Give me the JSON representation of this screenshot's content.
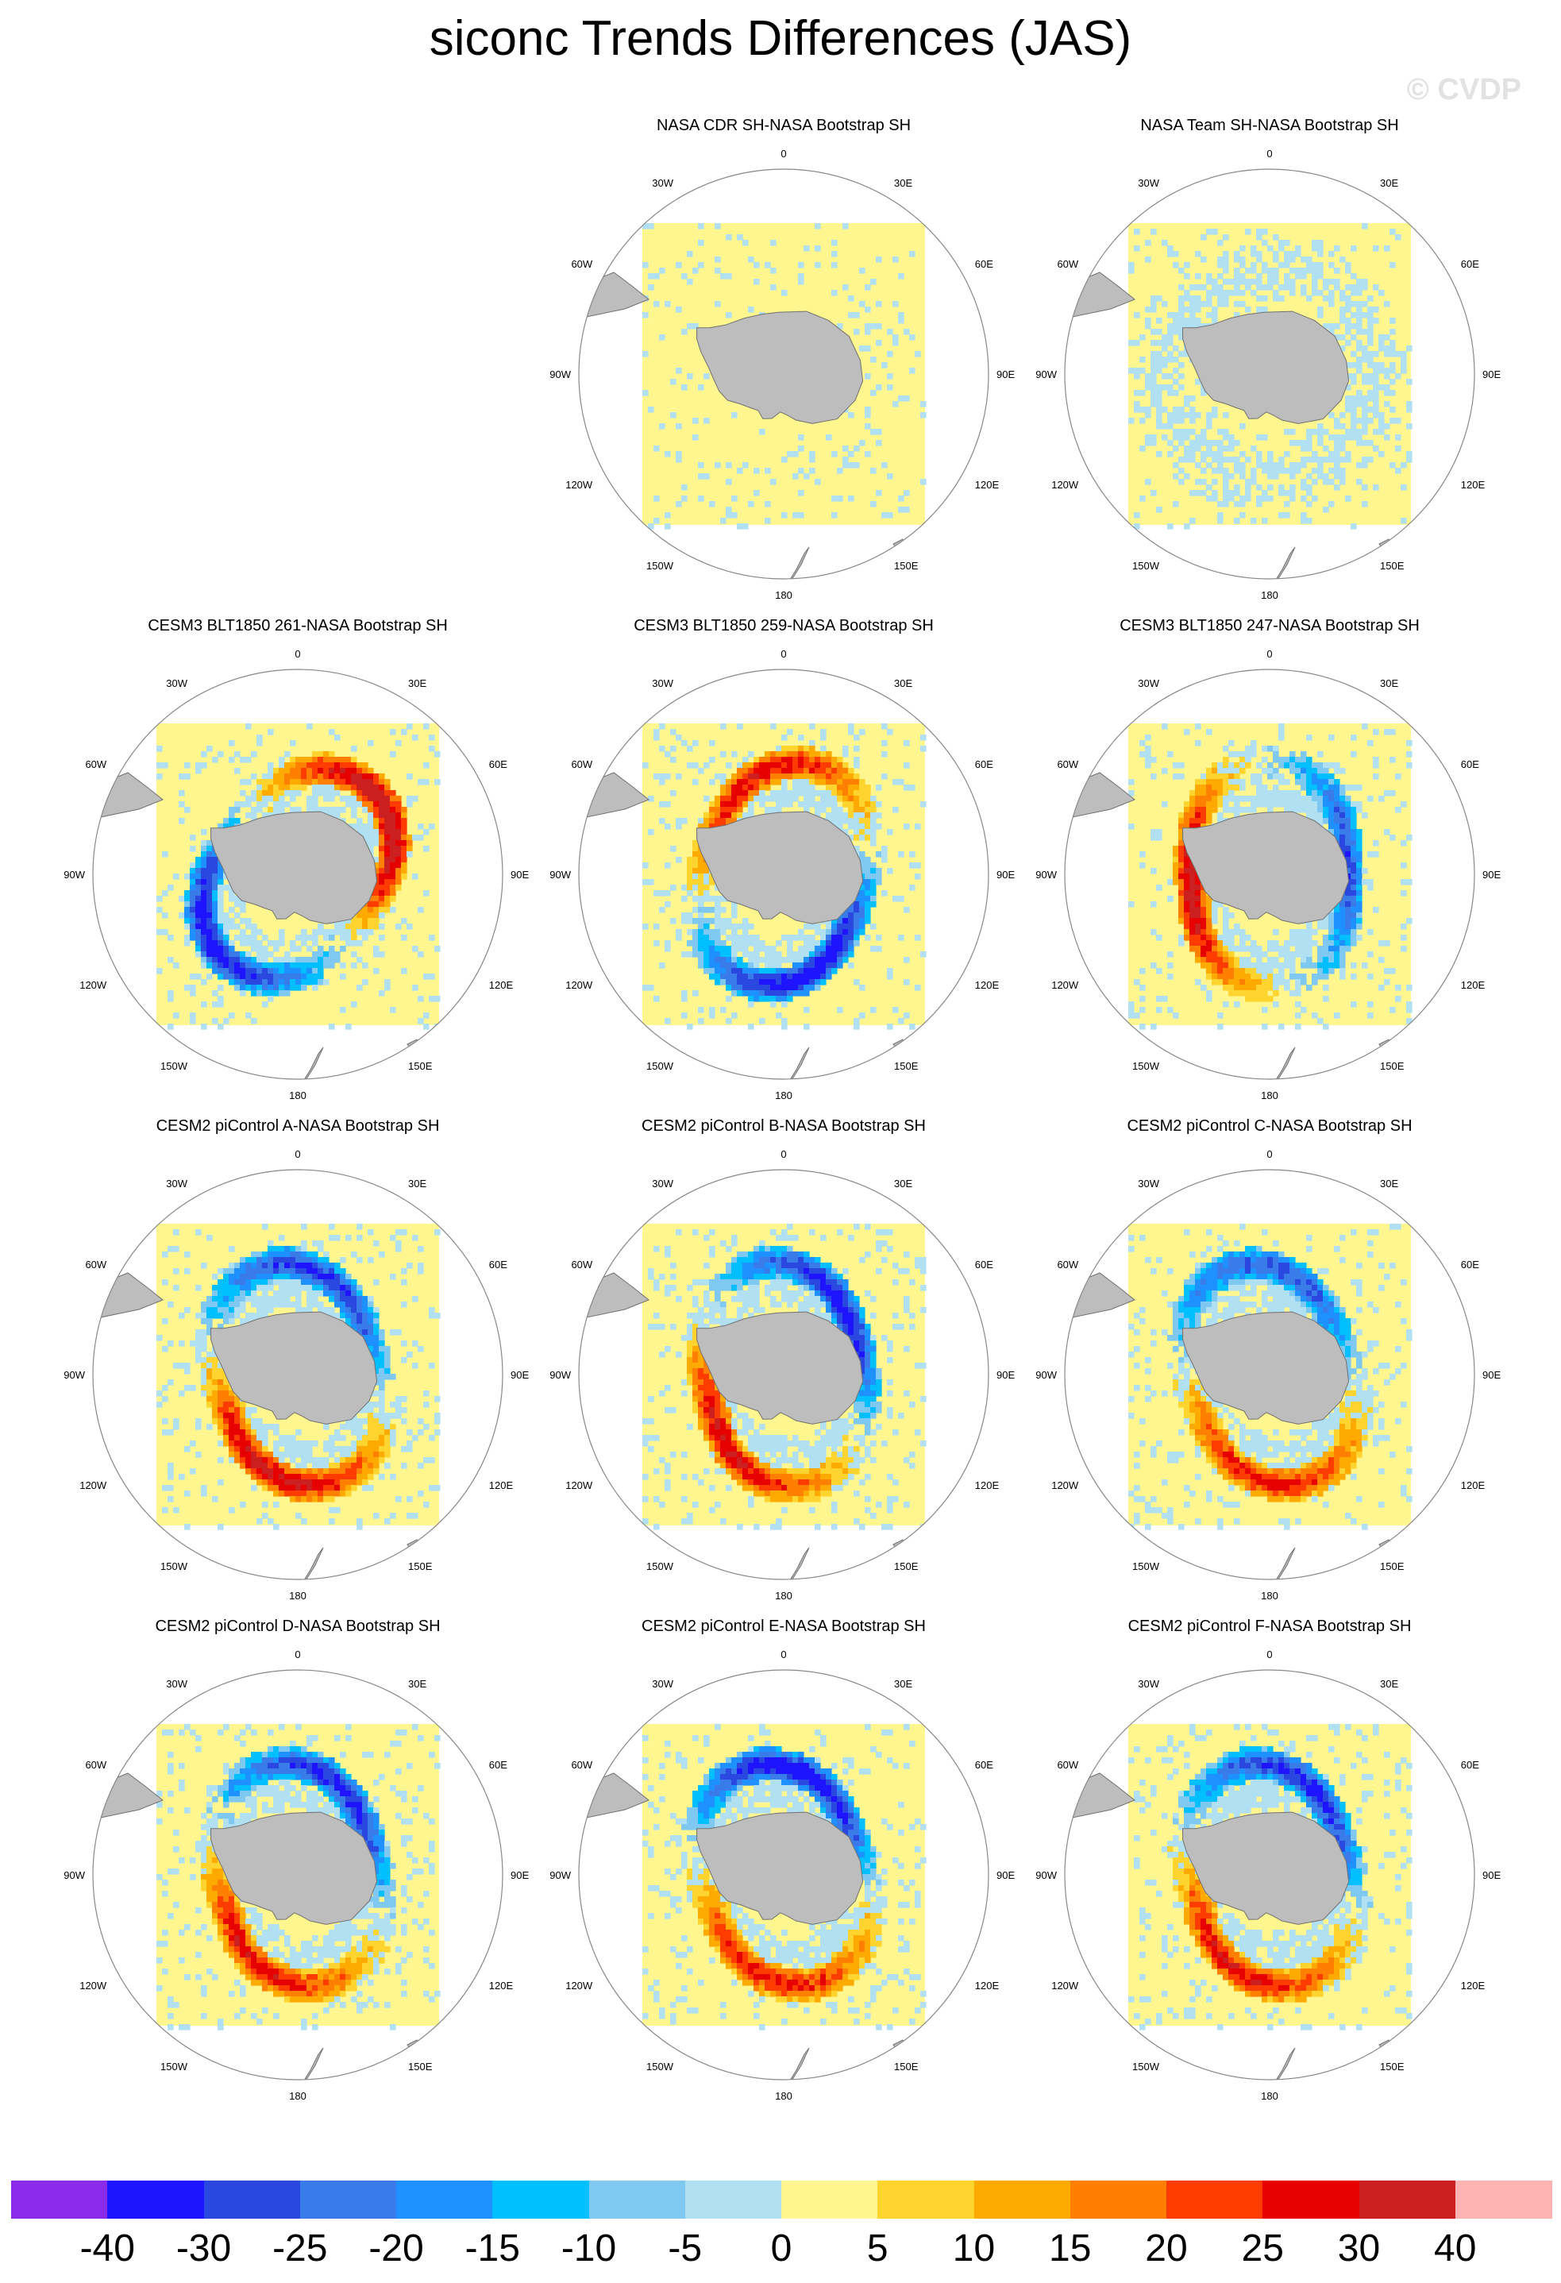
{
  "title": "siconc Trends Differences (JAS)",
  "watermark": "© CVDP",
  "colors": {
    "land": "#bdbdbd",
    "coast": "#707070",
    "background": "#ffffff"
  },
  "lon_labels": [
    "0",
    "30E",
    "60E",
    "90E",
    "120E",
    "150E",
    "180",
    "150W",
    "120W",
    "90W",
    "60W",
    "30W"
  ],
  "colorbar": {
    "levels": [
      "-40",
      "-30",
      "-25",
      "-20",
      "-15",
      "-10",
      "-5",
      "0",
      "5",
      "10",
      "15",
      "20",
      "25",
      "30",
      "40"
    ],
    "colors": [
      "#8a2bea",
      "#1f14ff",
      "#2a47e0",
      "#3a7bea",
      "#1e90ff",
      "#00bfff",
      "#7ec8f2",
      "#b0e0f2",
      "#fff68f",
      "#ffd42e",
      "#ffaa00",
      "#ff7f00",
      "#ff3c00",
      "#e60000",
      "#cc1f1f",
      "#ffb3b3"
    ]
  },
  "panels": [
    {
      "title": "NASA CDR SH-NASA Bootstrap SH",
      "pattern": "calm",
      "ring": 0.15,
      "pos": 0,
      "neg": 0,
      "phase": 0
    },
    {
      "title": "NASA Team SH-NASA Bootstrap SH",
      "pattern": "calm",
      "ring": 0.7,
      "pos": 0,
      "neg": 0,
      "phase": 0
    },
    {
      "title": "CESM3 BLT1850 261-NASA Bootstrap SH",
      "pattern": "strong",
      "ring": 0.8,
      "pos": 0.95,
      "neg": 0.85,
      "phase": 0.6
    },
    {
      "title": "CESM3 BLT1850 259-NASA Bootstrap SH",
      "pattern": "strong",
      "ring": 0.8,
      "pos": 0.75,
      "neg": 0.9,
      "phase": 1.9
    },
    {
      "title": "CESM3 BLT1850 247-NASA Bootstrap SH",
      "pattern": "strong",
      "ring": 0.8,
      "pos": 0.9,
      "neg": 0.7,
      "phase": 3.3
    },
    {
      "title": "CESM2 piControl A-NASA Bootstrap SH",
      "pattern": "strong",
      "ring": 0.8,
      "pos": 0.85,
      "neg": 0.75,
      "phase": 4.4
    },
    {
      "title": "CESM2 piControl B-NASA Bootstrap SH",
      "pattern": "strong",
      "ring": 0.8,
      "pos": 0.8,
      "neg": 0.85,
      "phase": 4.0
    },
    {
      "title": "CESM2 piControl C-NASA Bootstrap SH",
      "pattern": "strong",
      "ring": 0.8,
      "pos": 0.7,
      "neg": 0.65,
      "phase": 4.6
    },
    {
      "title": "CESM2 piControl D-NASA Bootstrap SH",
      "pattern": "strong",
      "ring": 0.8,
      "pos": 0.75,
      "neg": 0.8,
      "phase": 4.2
    },
    {
      "title": "CESM2 piControl E-NASA Bootstrap SH",
      "pattern": "strong",
      "ring": 0.8,
      "pos": 0.7,
      "neg": 0.9,
      "phase": 4.5
    },
    {
      "title": "CESM2 piControl F-NASA Bootstrap SH",
      "pattern": "strong",
      "ring": 0.8,
      "pos": 0.75,
      "neg": 0.8,
      "phase": 4.3
    }
  ]
}
